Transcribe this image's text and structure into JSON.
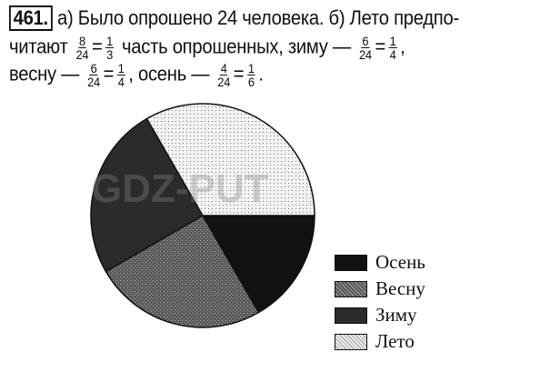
{
  "problem": {
    "number": "461.",
    "line1": {
      "a": "а) Было опрошено 24 человека. б) Лето предпо-"
    },
    "line2": {
      "pre": "читают",
      "f1n": "8",
      "f1d": "24",
      "eq1": "=",
      "f2n": "1",
      "f2d": "3",
      "mid": "часть опрошенных, зиму —",
      "f3n": "6",
      "f3d": "24",
      "eq2": "=",
      "f4n": "1",
      "f4d": "4",
      "post": ","
    },
    "line3": {
      "pre": "весну —",
      "f1n": "6",
      "f1d": "24",
      "eq1": "=",
      "f2n": "1",
      "f2d": "4",
      "mid": ", осень —",
      "f3n": "4",
      "f3d": "24",
      "eq2": "=",
      "f4n": "1",
      "f4d": "6",
      "post": "."
    }
  },
  "watermark": "GDZ-PUT",
  "chart_data": {
    "type": "pie",
    "legend_position": "right",
    "slices": [
      {
        "name": "Осень",
        "value": 4,
        "fill": "#111111"
      },
      {
        "name": "Весну",
        "value": 6,
        "fill": "#6e6e6e"
      },
      {
        "name": "Зиму",
        "value": 6,
        "fill": "#2a2a2a"
      },
      {
        "name": "Лето",
        "value": 8,
        "fill": "#e6e6e6"
      }
    ]
  }
}
